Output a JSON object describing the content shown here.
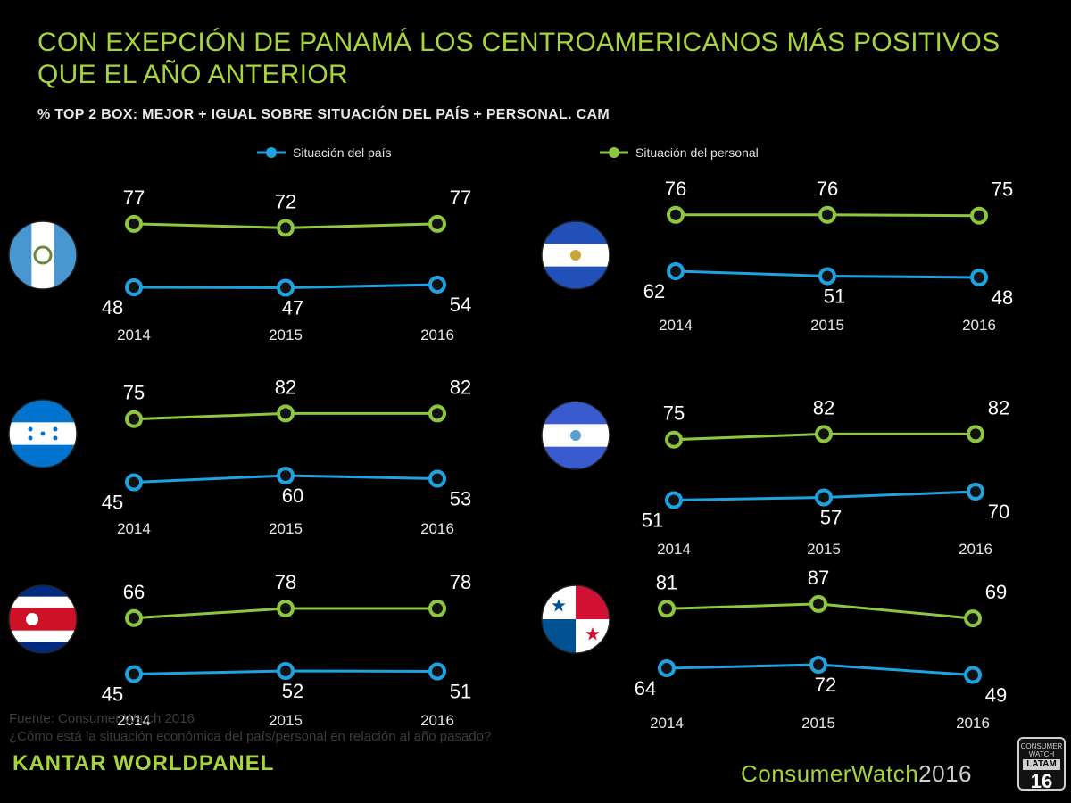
{
  "title": "CON EXEPCIÓN DE PANAMÁ LOS CENTROAMERICANOS MÁS POSITIVOS QUE EL AÑO ANTERIOR",
  "subtitle": "% TOP 2 BOX: MEJOR + IGUAL SOBRE SITUACIÓN DEL PAÍS + PERSONAL. CAM",
  "legend": {
    "pais": "Situación del país",
    "personal": "Situación del personal"
  },
  "colors": {
    "pais": "#1fa3e0",
    "personal": "#8dc63f",
    "title": "#a6d43b"
  },
  "chart_data": [
    {
      "type": "line",
      "flag": "guatemala-flag",
      "categories": [
        "2014",
        "2015",
        "2016"
      ],
      "series": [
        {
          "name": "Situación del personal",
          "values": [
            77,
            72,
            77
          ]
        },
        {
          "name": "Situación del país",
          "values": [
            48,
            47,
            54
          ]
        }
      ]
    },
    {
      "type": "line",
      "flag": "el-salvador-flag",
      "categories": [
        "2014",
        "2015",
        "2016"
      ],
      "series": [
        {
          "name": "Situación del personal",
          "values": [
            76,
            76,
            75
          ]
        },
        {
          "name": "Situación del país",
          "values": [
            62,
            51,
            48
          ]
        }
      ]
    },
    {
      "type": "line",
      "flag": "honduras-flag",
      "categories": [
        "2014",
        "2015",
        "2016"
      ],
      "series": [
        {
          "name": "Situación del personal",
          "values": [
            75,
            82,
            82
          ]
        },
        {
          "name": "Situación del país",
          "values": [
            45,
            60,
            53
          ]
        }
      ]
    },
    {
      "type": "line",
      "flag": "nicaragua-flag",
      "categories": [
        "2014",
        "2015",
        "2016"
      ],
      "series": [
        {
          "name": "Situación del personal",
          "values": [
            75,
            82,
            82
          ]
        },
        {
          "name": "Situación del país",
          "values": [
            51,
            57,
            70
          ]
        }
      ]
    },
    {
      "type": "line",
      "flag": "costa-rica-flag",
      "categories": [
        "2014",
        "2015",
        "2016"
      ],
      "series": [
        {
          "name": "Situación del personal",
          "values": [
            66,
            78,
            78
          ]
        },
        {
          "name": "Situación del país",
          "values": [
            45,
            52,
            51
          ]
        }
      ]
    },
    {
      "type": "line",
      "flag": "panama-flag",
      "categories": [
        "2014",
        "2015",
        "2016"
      ],
      "series": [
        {
          "name": "Situación del personal",
          "values": [
            81,
            87,
            69
          ]
        },
        {
          "name": "Situación del país",
          "values": [
            64,
            72,
            49
          ]
        }
      ]
    }
  ],
  "footer": {
    "source": "Fuente: Consumer Watch 2016",
    "question": "¿Cómo está la situación económica del país/personal en relación al año pasado?",
    "brand": "KANTAR WORLDPANEL",
    "cw_name": "ConsumerWatch",
    "cw_year": "2016",
    "badge_top": "CONSUMER WATCH",
    "badge_mid": "LATAM",
    "badge_num": "16"
  }
}
